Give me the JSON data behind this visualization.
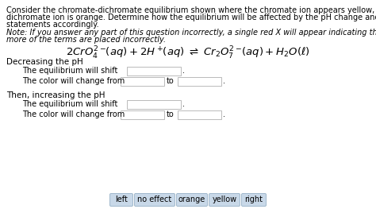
{
  "background_color": "#ffffff",
  "body_text_lines": [
    "Consider the chromate-dichromate equilibrium shown where the chromate ion appears yellow, and the",
    "dichromate ion is orange. Determine how the equilibrium will be affected by the pH change and fill in the the",
    "statements accordingly."
  ],
  "note_line1": "Note: If you answer any part of this question incorrectly, a single red X will appear indicating that one or",
  "note_line2": "more of the terms are placed incorrectly.",
  "section1_header": "Decreasing the pH",
  "section1_line1": "The equilibrium will shift",
  "section1_line2": "The color will change from",
  "section2_header": "Then, increasing the pH",
  "section2_line1": "The equilibrium will shift",
  "section2_line2": "The color will change from",
  "to_label": "to",
  "dot": ".",
  "buttons": [
    "left",
    "no effect",
    "orange",
    "yellow",
    "right"
  ],
  "button_bg": "#c8d8e8",
  "button_border": "#a0b8cc",
  "box_color": "#ffffff",
  "box_border": "#b0b0b0",
  "font_size_body": 7.0,
  "font_size_note": 7.0,
  "font_size_eq": 9.5,
  "font_size_section": 7.5,
  "font_size_line": 7.0,
  "font_size_button": 7.0,
  "indent1": 8,
  "indent2": 28
}
